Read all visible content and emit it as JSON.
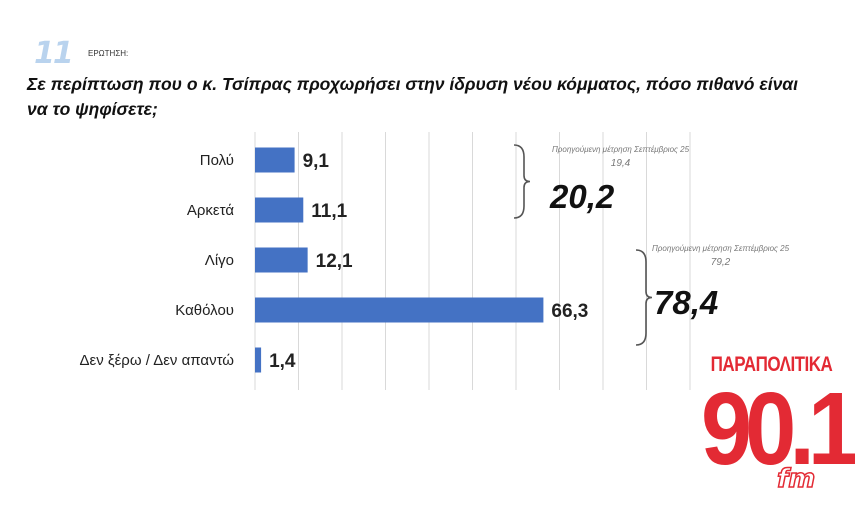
{
  "header": {
    "question_number": "11",
    "question_label": "ΕΡΩΤΗΣΗ:",
    "question_text": "Σε περίπτωση που ο κ. Τσίπρας προχωρήσει στην ίδρυση νέου κόμματος, πόσο πιθανό είναι να το ψηφίσετε;"
  },
  "chart_data": {
    "type": "bar",
    "orientation": "horizontal",
    "categories": [
      "Πολύ",
      "Αρκετά",
      "Λίγο",
      "Καθόλου",
      "Δεν ξέρω / Δεν απαντώ"
    ],
    "values": [
      9.1,
      11.1,
      12.1,
      66.3,
      1.4
    ],
    "value_labels": [
      "9,1",
      "11,1",
      "12,1",
      "66,3",
      "1,4"
    ],
    "bar_color": "#4472c4",
    "grid": true,
    "xlim": [
      0,
      100
    ],
    "title": "",
    "xlabel": "",
    "ylabel": ""
  },
  "annotations": {
    "group1": {
      "prev_label": "Προηγούμενη μέτρηση Σεπτέμβριος 25",
      "prev_value": "19,4",
      "total": "20,2"
    },
    "group2": {
      "prev_label": "Προηγούμενη μέτρηση Σεπτέμβριος 25",
      "prev_value": "79,2",
      "total": "78,4"
    }
  },
  "logo": {
    "top_text": "ΠΑΡΑΠΟΛΙΤΙΚΑ",
    "number": "90.1",
    "suffix": "fm",
    "color": "#e32a34"
  }
}
